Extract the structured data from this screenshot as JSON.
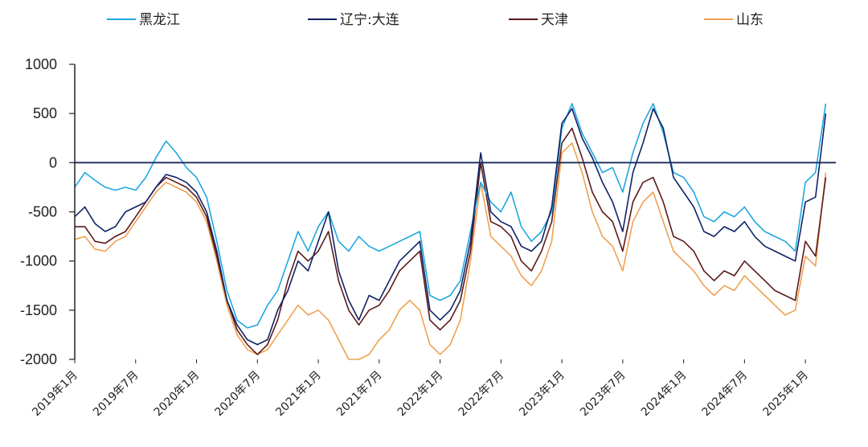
{
  "chart_data": {
    "type": "line",
    "title": "",
    "xlabel": "",
    "ylabel": "",
    "ylim": [
      -2000,
      1000
    ],
    "yticks": [
      "1000",
      "500",
      "0",
      "-500",
      "-1000",
      "-1500",
      "-2000"
    ],
    "yticks_values": [
      1000,
      500,
      0,
      -500,
      -1000,
      -1500,
      -2000
    ],
    "xlim": [
      "2019-01",
      "2025-04"
    ],
    "xticks": [
      "2019年1月",
      "2019年7月",
      "2020年1月",
      "2020年7月",
      "2021年1月",
      "2021年7月",
      "2022年1月",
      "2022年7月",
      "2023年1月",
      "2023年7月",
      "2024年1月",
      "2024年7月",
      "2025年1月"
    ],
    "xticks_dates": [
      "2019-01",
      "2019-07",
      "2020-01",
      "2020-07",
      "2021-01",
      "2021-07",
      "2022-01",
      "2022-07",
      "2023-01",
      "2023-07",
      "2024-01",
      "2024-07",
      "2025-01"
    ],
    "legend_position": "top",
    "grid": false,
    "x": [
      "2019-01",
      "2019-02",
      "2019-03",
      "2019-04",
      "2019-05",
      "2019-06",
      "2019-07",
      "2019-08",
      "2019-09",
      "2019-10",
      "2019-11",
      "2019-12",
      "2020-01",
      "2020-02",
      "2020-03",
      "2020-04",
      "2020-05",
      "2020-06",
      "2020-07",
      "2020-08",
      "2020-09",
      "2020-10",
      "2020-11",
      "2020-12",
      "2021-01",
      "2021-02",
      "2021-03",
      "2021-04",
      "2021-05",
      "2021-06",
      "2021-07",
      "2021-08",
      "2021-09",
      "2021-10",
      "2021-11",
      "2021-12",
      "2022-01",
      "2022-02",
      "2022-03",
      "2022-04",
      "2022-05",
      "2022-06",
      "2022-07",
      "2022-08",
      "2022-09",
      "2022-10",
      "2022-11",
      "2022-12",
      "2023-01",
      "2023-02",
      "2023-03",
      "2023-04",
      "2023-05",
      "2023-06",
      "2023-07",
      "2023-08",
      "2023-09",
      "2023-10",
      "2023-11",
      "2023-12",
      "2024-01",
      "2024-02",
      "2024-03",
      "2024-04",
      "2024-05",
      "2024-06",
      "2024-07",
      "2024-08",
      "2024-09",
      "2024-10",
      "2024-11",
      "2024-12",
      "2025-01",
      "2025-02",
      "2025-03"
    ],
    "series": [
      {
        "name": "黑龙江",
        "color": "#1FA8E0",
        "values": [
          -250,
          -100,
          -180,
          -250,
          -280,
          -250,
          -280,
          -150,
          50,
          220,
          100,
          -50,
          -150,
          -350,
          -800,
          -1300,
          -1600,
          -1680,
          -1650,
          -1450,
          -1300,
          -1000,
          -700,
          -900,
          -650,
          -500,
          -800,
          -900,
          -750,
          -850,
          -900,
          -850,
          -800,
          -750,
          -700,
          -1350,
          -1400,
          -1350,
          -1200,
          -700,
          -200,
          -400,
          -500,
          -300,
          -650,
          -800,
          -700,
          -500,
          350,
          600,
          300,
          100,
          -100,
          -50,
          -300,
          100,
          400,
          600,
          300,
          -100,
          -150,
          -300,
          -550,
          -600,
          -500,
          -550,
          -450,
          -600,
          -700,
          -750,
          -800,
          -900,
          -200,
          -100,
          600
        ]
      },
      {
        "name": "辽宁:大连",
        "color": "#0F2266",
        "values": [
          -550,
          -450,
          -620,
          -700,
          -650,
          -500,
          -450,
          -400,
          -250,
          -120,
          -150,
          -200,
          -300,
          -500,
          -900,
          -1400,
          -1650,
          -1800,
          -1850,
          -1800,
          -1500,
          -1300,
          -1000,
          -1100,
          -800,
          -500,
          -1100,
          -1400,
          -1600,
          -1350,
          -1400,
          -1200,
          -1000,
          -900,
          -800,
          -1500,
          -1600,
          -1500,
          -1300,
          -800,
          100,
          -500,
          -600,
          -650,
          -850,
          -900,
          -800,
          -450,
          400,
          550,
          250,
          50,
          -200,
          -400,
          -700,
          -100,
          200,
          550,
          350,
          -150,
          -300,
          -450,
          -700,
          -750,
          -650,
          -700,
          -600,
          -750,
          -850,
          -900,
          -950,
          -1000,
          -400,
          -350,
          500
        ]
      },
      {
        "name": "天津",
        "color": "#5C1A1A",
        "values": [
          -650,
          -650,
          -800,
          -820,
          -750,
          -700,
          -550,
          -400,
          -250,
          -150,
          -200,
          -250,
          -350,
          -550,
          -950,
          -1400,
          -1700,
          -1850,
          -1950,
          -1850,
          -1600,
          -1200,
          -900,
          -1000,
          -900,
          -700,
          -1200,
          -1500,
          -1650,
          -1500,
          -1450,
          -1300,
          -1100,
          -1000,
          -900,
          -1600,
          -1700,
          -1600,
          -1400,
          -900,
          0,
          -600,
          -650,
          -750,
          -1000,
          -1100,
          -900,
          -600,
          200,
          350,
          50,
          -300,
          -500,
          -600,
          -900,
          -400,
          -200,
          -150,
          -400,
          -750,
          -800,
          -900,
          -1100,
          -1200,
          -1100,
          -1150,
          -1000,
          -1100,
          -1200,
          -1300,
          -1350,
          -1400,
          -800,
          -950,
          -150
        ]
      },
      {
        "name": "山东",
        "color": "#F0A050",
        "values": [
          -780,
          -750,
          -880,
          -900,
          -800,
          -750,
          -600,
          -450,
          -300,
          -200,
          -250,
          -300,
          -400,
          -600,
          -1000,
          -1450,
          -1750,
          -1900,
          -1950,
          -1900,
          -1750,
          -1600,
          -1450,
          -1550,
          -1500,
          -1600,
          -1800,
          -2000,
          -2000,
          -1950,
          -1800,
          -1700,
          -1500,
          -1400,
          -1500,
          -1850,
          -1950,
          -1850,
          -1600,
          -1000,
          -200,
          -750,
          -850,
          -950,
          -1150,
          -1250,
          -1100,
          -800,
          100,
          200,
          -100,
          -500,
          -750,
          -850,
          -1100,
          -600,
          -400,
          -300,
          -600,
          -900,
          -1000,
          -1100,
          -1250,
          -1350,
          -1250,
          -1300,
          -1150,
          -1250,
          -1350,
          -1450,
          -1550,
          -1500,
          -950,
          -1050,
          -100
        ]
      }
    ]
  }
}
